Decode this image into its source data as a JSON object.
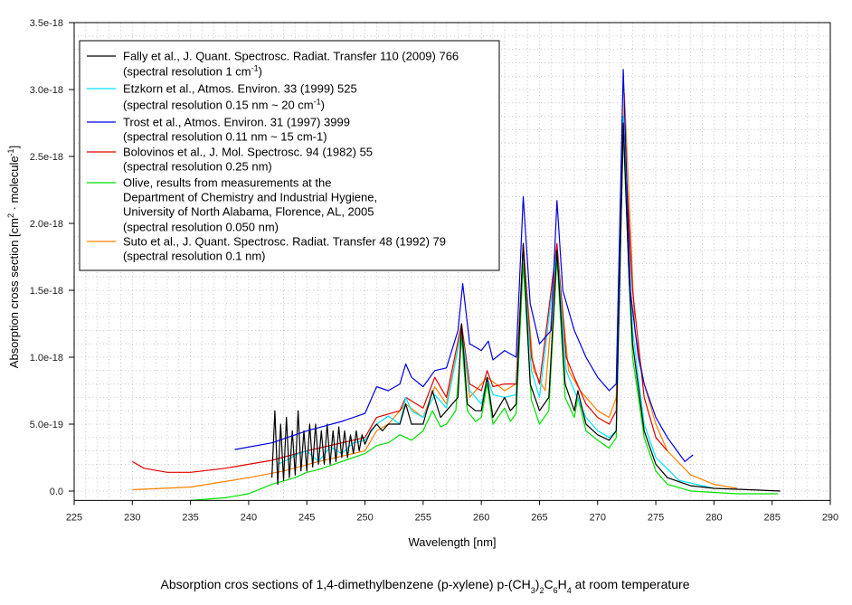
{
  "chart_data": {
    "type": "line",
    "title_parts": [
      {
        "t": "Absorption cros sections of 1,4-dimethylbenzene (p-xylene) p-(CH"
      },
      {
        "t": "3",
        "sub": true
      },
      {
        "t": ")"
      },
      {
        "t": "2",
        "sub": true
      },
      {
        "t": "C"
      },
      {
        "t": "6",
        "sub": true
      },
      {
        "t": "H"
      },
      {
        "t": "4",
        "sub": true
      },
      {
        "t": " at room temperature"
      }
    ],
    "xlabel": "Wavelength [nm]",
    "ylabel_parts": [
      {
        "t": "Absorption cross section [cm"
      },
      {
        "t": "2",
        "sup": true
      },
      {
        "t": " · molecule"
      },
      {
        "t": "-1",
        "sup": true
      },
      {
        "t": "]"
      }
    ],
    "y_unit_scale": "1e-18",
    "xlim": [
      225,
      290
    ],
    "ylim": [
      -0.07,
      3.5
    ],
    "grid": true,
    "legend_placement": "top-left",
    "x_ticks": [
      225,
      230,
      235,
      240,
      245,
      250,
      255,
      260,
      265,
      270,
      275,
      280,
      285,
      290
    ],
    "x_tick_labels": [
      "225",
      "230",
      "235",
      "240",
      "245",
      "250",
      "255",
      "260",
      "265",
      "270",
      "275",
      "280",
      "285",
      "290"
    ],
    "y_ticks": [
      0,
      0.5,
      1.0,
      1.5,
      2.0,
      2.5,
      3.0,
      3.5
    ],
    "y_tick_labels": [
      "0.0",
      "5.0e-19",
      "1.0e-18",
      "1.5e-18",
      "2.0e-18",
      "2.5e-18",
      "3.0e-18",
      "3.5e-18"
    ],
    "series": [
      {
        "name": "Olive",
        "color": "#00e000",
        "legend": [
          [
            {
              "t": "Olive, results from measurements at the"
            }
          ],
          [
            {
              "t": "Department of Chemistry and Industrial Hygiene,"
            }
          ],
          [
            {
              "t": "University of North Alabama, Florence, AL, 2005"
            }
          ],
          [
            {
              "t": "(spectral resolution 0.050 nm)"
            }
          ]
        ],
        "x": [
          235,
          238,
          240,
          242,
          244,
          245,
          246,
          248,
          250,
          251,
          252,
          253,
          254,
          255,
          255.8,
          256.5,
          257,
          257.8,
          258.3,
          258.8,
          259.5,
          260,
          260.5,
          261,
          262,
          262.5,
          263,
          263.6,
          264.3,
          265,
          265.8,
          266.5,
          267.2,
          268,
          268.3,
          269,
          270,
          271,
          271.6,
          272.2,
          272.7,
          273,
          274,
          275,
          276,
          278,
          282,
          285.5
        ],
        "y": [
          -0.07,
          -0.05,
          -0.02,
          0.05,
          0.1,
          0.14,
          0.16,
          0.22,
          0.28,
          0.34,
          0.36,
          0.42,
          0.38,
          0.45,
          0.6,
          0.48,
          0.5,
          0.6,
          1.15,
          0.6,
          0.52,
          0.55,
          0.8,
          0.5,
          0.62,
          0.52,
          0.58,
          1.7,
          0.68,
          0.5,
          0.6,
          1.75,
          0.7,
          0.55,
          0.7,
          0.45,
          0.38,
          0.32,
          0.4,
          2.7,
          1.6,
          1.0,
          0.4,
          0.15,
          0.05,
          0.0,
          -0.02,
          -0.02
        ]
      },
      {
        "name": "Suto",
        "color": "#ff8000",
        "legend": [
          [
            {
              "t": "Suto et al., J. Quant. Spectrosc. Radiat. Transfer 48 (1992) 79"
            }
          ],
          [
            {
              "t": "(spectral resolution 0.1 nm)"
            }
          ]
        ],
        "x": [
          230,
          235,
          240,
          243,
          246,
          250,
          251,
          252,
          253.5,
          255,
          256,
          257,
          258.3,
          259,
          260.5,
          262,
          263,
          263.6,
          264.5,
          265.5,
          266.5,
          267.5,
          268.5,
          270,
          271,
          271.6,
          272.3,
          273.2,
          274,
          275,
          276,
          278,
          280,
          282
        ],
        "y": [
          0.01,
          0.03,
          0.1,
          0.15,
          0.22,
          0.3,
          0.45,
          0.5,
          0.65,
          0.55,
          0.78,
          0.65,
          1.2,
          0.7,
          0.85,
          0.75,
          0.8,
          1.8,
          0.9,
          0.75,
          1.8,
          0.9,
          0.75,
          0.6,
          0.55,
          0.7,
          2.97,
          1.2,
          0.8,
          0.5,
          0.3,
          0.12,
          0.05,
          0.02
        ]
      },
      {
        "name": "Bolovinos",
        "color": "#e00000",
        "legend": [
          [
            {
              "t": "Bolovinos et al., J. Mol. Spectrosc. 94 (1982) 55"
            }
          ],
          [
            {
              "t": "(spectral resolution 0.25 nm)"
            }
          ]
        ],
        "x": [
          230,
          231,
          233,
          235,
          238,
          240,
          242,
          245,
          248,
          250,
          251,
          253,
          253.5,
          255,
          256,
          257,
          258.3,
          259,
          260,
          260.5,
          261,
          262,
          263,
          263.6,
          264.3,
          265,
          266.5,
          267.3,
          268,
          269,
          270,
          271,
          271.6,
          272.2,
          273,
          274,
          275,
          276
        ],
        "y": [
          0.22,
          0.17,
          0.14,
          0.14,
          0.17,
          0.2,
          0.23,
          0.3,
          0.36,
          0.4,
          0.55,
          0.6,
          0.7,
          0.62,
          0.85,
          0.7,
          1.25,
          0.8,
          0.75,
          0.9,
          0.78,
          0.8,
          0.8,
          1.85,
          1.0,
          0.8,
          1.85,
          1.0,
          0.85,
          0.65,
          0.55,
          0.5,
          0.6,
          2.8,
          1.5,
          0.7,
          0.4,
          0.3
        ]
      },
      {
        "name": "Etzkorn",
        "color": "#00e5ff",
        "legend": [
          [
            {
              "t": "Etzkorn et al., Atmos. Environ. 33 (1999) 525"
            }
          ],
          [
            {
              "t": "(spectral resolution 0.15 nm ~ 20 cm"
            },
            {
              "t": "-1",
              "sup": true
            },
            {
              "t": ")"
            }
          ]
        ],
        "x": [
          242.5,
          243.5,
          244,
          245,
          246,
          247,
          248,
          249,
          250,
          251,
          252,
          253,
          253.5,
          254,
          255,
          256,
          257,
          258.3,
          259,
          260,
          260.5,
          261,
          262,
          263,
          263.6,
          264.3,
          265,
          266.5,
          267.3,
          268,
          269,
          270,
          271,
          271.6,
          272.2,
          273,
          274,
          275,
          277,
          280
        ],
        "y": [
          0.2,
          0.24,
          0.27,
          0.3,
          0.22,
          0.33,
          0.28,
          0.36,
          0.38,
          0.5,
          0.56,
          0.5,
          0.7,
          0.6,
          0.55,
          0.72,
          0.62,
          1.2,
          0.75,
          0.65,
          0.85,
          0.72,
          0.7,
          0.72,
          1.8,
          0.9,
          0.7,
          1.8,
          0.9,
          0.75,
          0.55,
          0.45,
          0.4,
          0.45,
          2.8,
          1.2,
          0.5,
          0.25,
          0.08,
          0.02
        ]
      },
      {
        "name": "Fally",
        "color": "#000000",
        "legend": [
          [
            {
              "t": "Fally et al., J. Quant. Spectrosc. Radiat. Transfer 110 (2009) 766"
            }
          ],
          [
            {
              "t": "(spectral resolution 1 cm"
            },
            {
              "t": "-1",
              "sup": true
            },
            {
              "t": ")"
            }
          ]
        ],
        "x": [
          242,
          242.25,
          242.5,
          242.75,
          243,
          243.25,
          243.5,
          243.75,
          244,
          244.25,
          244.5,
          244.75,
          245,
          245.25,
          245.5,
          245.75,
          246,
          246.25,
          246.5,
          246.75,
          247,
          247.25,
          247.5,
          247.75,
          248,
          248.25,
          248.5,
          248.75,
          249,
          249.25,
          249.5,
          249.75,
          250,
          250.5,
          251,
          251.5,
          252,
          253,
          253.5,
          254,
          255,
          255.8,
          256.5,
          257,
          258,
          258.3,
          258.8,
          259.5,
          260,
          260.5,
          261,
          262,
          262.5,
          263,
          263.6,
          264.2,
          265,
          265.8,
          266.5,
          267.2,
          268,
          268.3,
          269,
          270,
          271,
          271.6,
          272.2,
          272.7,
          273,
          274,
          275,
          276,
          278,
          280,
          283,
          285.7
        ],
        "y": [
          0.1,
          0.6,
          0.05,
          0.5,
          0.08,
          0.55,
          0.1,
          0.45,
          0.12,
          0.6,
          0.15,
          0.45,
          0.15,
          0.5,
          0.18,
          0.5,
          0.2,
          0.45,
          0.2,
          0.5,
          0.2,
          0.45,
          0.22,
          0.48,
          0.25,
          0.45,
          0.25,
          0.42,
          0.28,
          0.45,
          0.3,
          0.42,
          0.35,
          0.45,
          0.5,
          0.45,
          0.5,
          0.5,
          0.65,
          0.5,
          0.5,
          0.75,
          0.55,
          0.6,
          0.7,
          1.25,
          0.65,
          0.6,
          0.6,
          0.85,
          0.55,
          0.7,
          0.6,
          0.65,
          1.85,
          0.8,
          0.6,
          0.7,
          1.8,
          0.8,
          0.6,
          0.75,
          0.5,
          0.42,
          0.38,
          0.45,
          2.75,
          1.6,
          1.1,
          0.45,
          0.2,
          0.1,
          0.04,
          0.02,
          0.01,
          0.0
        ]
      },
      {
        "name": "Trost",
        "color": "#0000e0",
        "legend": [
          [
            {
              "t": "Trost et al., Atmos. Environ. 31 (1997) 3999"
            }
          ],
          [
            {
              "t": "(spectral resolution 0.11 nm ~ 15 cm-1)"
            }
          ]
        ],
        "x": [
          238.8,
          242,
          245,
          248,
          250,
          251,
          252,
          253,
          253.5,
          254,
          255,
          256,
          257,
          258,
          258.4,
          259,
          260,
          260.6,
          261,
          262,
          263,
          263.6,
          264.2,
          265,
          266,
          266.5,
          267,
          268,
          269,
          270,
          271,
          271.6,
          272.2,
          272.8,
          273.5,
          274,
          275,
          276,
          277,
          277.5,
          278.2
        ],
        "y": [
          0.31,
          0.36,
          0.45,
          0.52,
          0.58,
          0.78,
          0.75,
          0.8,
          0.95,
          0.85,
          0.78,
          0.9,
          0.92,
          1.2,
          1.55,
          1.1,
          1.05,
          1.12,
          0.98,
          1.05,
          1.0,
          2.2,
          1.4,
          1.1,
          1.2,
          2.17,
          1.5,
          1.2,
          1.0,
          0.85,
          0.75,
          0.8,
          3.15,
          1.5,
          1.0,
          0.8,
          0.55,
          0.4,
          0.28,
          0.22,
          0.27
        ]
      }
    ],
    "legend_order": [
      "Fally",
      "Etzkorn",
      "Trost",
      "Bolovinos",
      "Olive",
      "Suto"
    ]
  }
}
